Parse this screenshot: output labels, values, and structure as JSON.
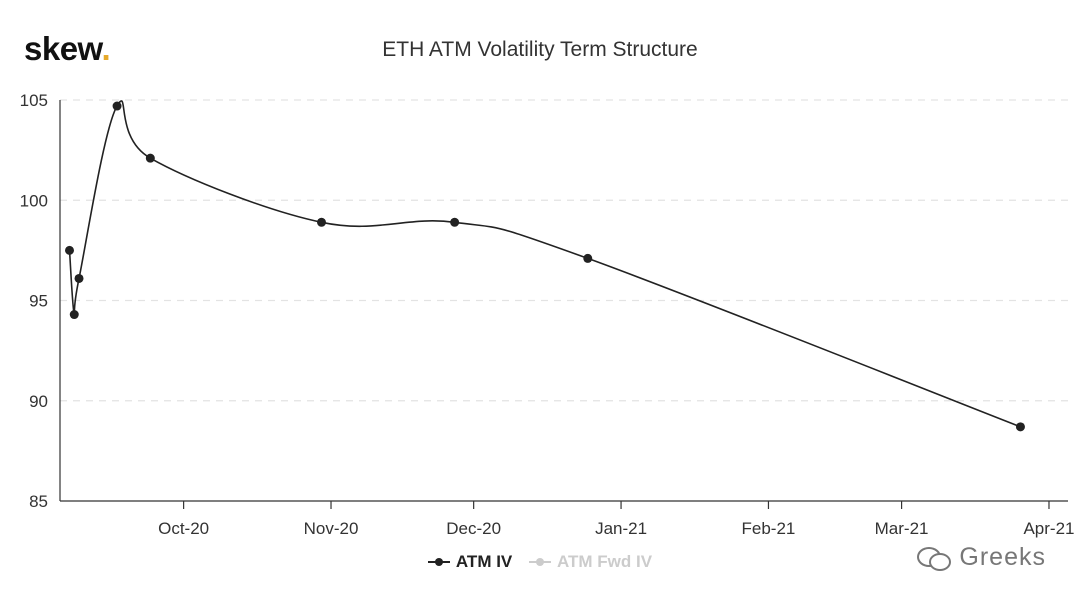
{
  "brand": {
    "name": "skew",
    "dot": ".",
    "dot_color": "#e6a92a"
  },
  "watermark": {
    "text": "Greeks",
    "icon": "wechat-icon"
  },
  "chart_data": {
    "type": "line",
    "title": "ETH ATM Volatility Term Structure",
    "xlabel": "",
    "ylabel": "",
    "x_ticks": [
      "Oct-20",
      "Nov-20",
      "Dec-20",
      "Jan-21",
      "Feb-21",
      "Mar-21",
      "Apr-21"
    ],
    "y_ticks": [
      85,
      90,
      95,
      100,
      105
    ],
    "ylim": [
      85,
      105
    ],
    "xlim": [
      "2020-09-05",
      "2021-04-05"
    ],
    "grid": true,
    "legend_placement": "bottom",
    "series": [
      {
        "name": "ATM IV",
        "color": "#222222",
        "active": true,
        "points": [
          {
            "x": "2020-09-07",
            "y": 97.5
          },
          {
            "x": "2020-09-08",
            "y": 94.3
          },
          {
            "x": "2020-09-09",
            "y": 96.1
          },
          {
            "x": "2020-09-17",
            "y": 104.7
          },
          {
            "x": "2020-09-24",
            "y": 102.1
          },
          {
            "x": "2020-10-30",
            "y": 98.9
          },
          {
            "x": "2020-11-27",
            "y": 98.9
          },
          {
            "x": "2020-12-25",
            "y": 97.1
          },
          {
            "x": "2021-03-26",
            "y": 88.7
          }
        ]
      },
      {
        "name": "ATM Fwd IV",
        "color": "#cccccc",
        "active": false,
        "points": []
      }
    ]
  }
}
